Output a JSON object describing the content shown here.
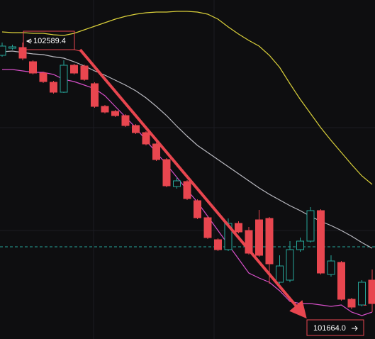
{
  "chart_data": {
    "type": "candlestick",
    "ylim": [
      101545,
      102740
    ],
    "candles": {
      "open": [
        102545,
        102570,
        102572.5,
        102522.5,
        102482.5,
        102450,
        102415,
        102510,
        102507.5,
        102445,
        102365,
        102347.5,
        102332.5,
        102297.5,
        102272.5,
        102232.5,
        102177.5,
        102082.5,
        102100,
        102032.5,
        101972.5,
        101895,
        101860,
        101952.5,
        101927.5,
        101965,
        101970,
        101745,
        101752.5,
        101860,
        101890,
        101997.5,
        101772.5,
        101815,
        101685,
        101665,
        101752.5
      ],
      "close": [
        102577.5,
        102575,
        102535,
        102482.5,
        102452.5,
        102415,
        102510,
        102482.5,
        102460,
        102365,
        102345,
        102332.5,
        102297.5,
        102272.5,
        102232.5,
        102177.5,
        102085,
        102102.5,
        102040,
        101972.5,
        101902.5,
        101860,
        101952.5,
        101922.5,
        101847.5,
        101840,
        101810,
        101802.5,
        101860,
        101890,
        101997.5,
        101777.5,
        101820,
        101685,
        101657.5,
        101745,
        101670
      ],
      "high": [
        102590,
        102582.5,
        102590,
        102527.5,
        102487.5,
        102455,
        102527.5,
        102515,
        102512.5,
        102450,
        102370,
        102352.5,
        102337.5,
        102302.5,
        102277.5,
        102237.5,
        102182.5,
        102115,
        102105,
        102037.5,
        101977.5,
        101900,
        101970,
        101960,
        101940,
        102000,
        101975,
        101840,
        101890,
        101902.5,
        102010,
        102002.5,
        101840,
        101820,
        101690,
        101752.5,
        101790
      ],
      "low": [
        102540,
        102565,
        102527.5,
        102477.5,
        102447.5,
        102410,
        102412.5,
        102477.5,
        102455,
        102360,
        102340,
        102327.5,
        102292.5,
        102267.5,
        102227.5,
        102172.5,
        102080,
        102075,
        102035,
        101967.5,
        101897.5,
        101855,
        101855,
        101917.5,
        101842.5,
        101835,
        101740,
        101740,
        101745,
        101852.5,
        101885,
        101772.5,
        101765,
        101680,
        101650,
        101660,
        101640
      ],
      "up_color": "#26a69a",
      "down_color": "#e8464f"
    },
    "series": [
      {
        "color": "#d9cf3a",
        "values": [
          102627.5,
          102625,
          102625,
          102622.5,
          102622.5,
          102617.5,
          102615,
          102622.5,
          102635,
          102647.5,
          102660,
          102672.5,
          102682.5,
          102690,
          102695,
          102697.5,
          102697.5,
          102700,
          102700,
          102697.5,
          102690,
          102672.5,
          102645,
          102620,
          102597.5,
          102577.5,
          102545,
          102502.5,
          102445,
          102390,
          102340,
          102290,
          102245,
          102202.5,
          102160,
          102120,
          102090
        ]
      },
      {
        "color": "#b9b9c0",
        "values": [
          102557.5,
          102560,
          102555,
          102550,
          102547.5,
          102540,
          102535,
          102522.5,
          102507.5,
          102490,
          102475,
          102457.5,
          102440,
          102420,
          102395,
          102365,
          102332.5,
          102295,
          102260,
          102227.5,
          102202.5,
          102177.5,
          102152.5,
          102127.5,
          102102.5,
          102077.5,
          102055,
          102035,
          102015,
          101997.5,
          101977.5,
          101960,
          101945,
          101927.5,
          101907.5,
          101885,
          101865
        ]
      },
      {
        "color": "#d64fc8",
        "values": [
          102495,
          102495,
          102490,
          102485,
          102485,
          102477.5,
          102460,
          102452.5,
          102440,
          102427.5,
          102402.5,
          102365,
          102327.5,
          102290,
          102245,
          102202.5,
          102160,
          102115,
          102070,
          102027.5,
          101977.5,
          101927.5,
          101877.5,
          101827.5,
          101777.5,
          101760,
          101745,
          101715,
          101677.5,
          101670,
          101670,
          101665,
          101660,
          101665,
          101640,
          101627.5,
          101640
        ]
      }
    ],
    "price_line": {
      "value": 101870,
      "color": "#26a69a"
    },
    "high_label": 102589.4,
    "low_label": {
      "value": 101664,
      "label": "101664.0"
    }
  }
}
